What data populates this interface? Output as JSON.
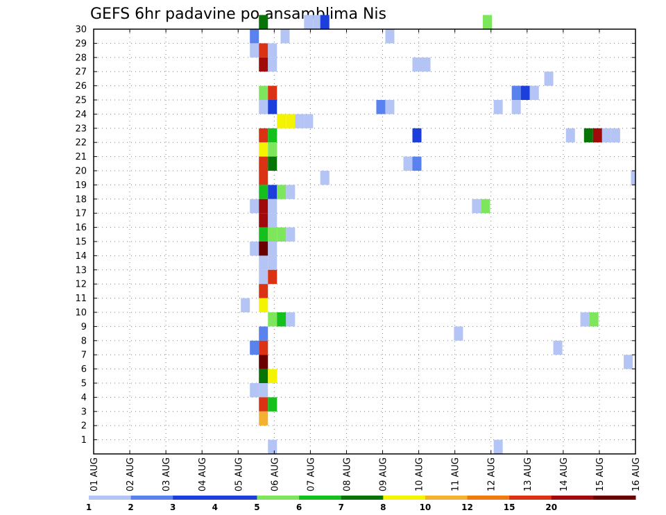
{
  "chart_data": {
    "type": "heatmap",
    "title": "GEFS 6hr padavine po ansamblima Nis",
    "xlabel": "",
    "ylabel": "",
    "x_ticks": [
      "01 AUG",
      "02 AUG",
      "03 AUG",
      "04 AUG",
      "05 AUG",
      "06 AUG",
      "07 AUG",
      "08 AUG",
      "09 AUG",
      "10 AUG",
      "11 AUG",
      "12 AUG",
      "13 AUG",
      "14 AUG",
      "15 AUG",
      "16 AUG"
    ],
    "x_range_days": [
      1,
      16
    ],
    "y_ticks": [
      1,
      2,
      3,
      4,
      5,
      6,
      7,
      8,
      9,
      10,
      11,
      12,
      13,
      14,
      15,
      16,
      17,
      18,
      19,
      20,
      21,
      22,
      23,
      24,
      25,
      26,
      27,
      28,
      29,
      30
    ],
    "y_range": [
      0,
      30
    ],
    "grid": true,
    "colorbar": {
      "labels": [
        "1",
        "2",
        "3",
        "4",
        "5",
        "6",
        "7",
        "8",
        "10",
        "12",
        "15",
        "20"
      ],
      "colors": [
        "#b4c4f4",
        "#5a82ef",
        "#1c3fdc",
        "#1f3fd8",
        "#7ee65c",
        "#16c01c",
        "#067406",
        "#f4f400",
        "#f4b030",
        "#f07a10",
        "#dc3214",
        "#a00a0a",
        "#6a0000"
      ]
    },
    "cells": [
      [
        30,
        5.7,
        "#067406"
      ],
      [
        30,
        6.95,
        "#b4c4f4"
      ],
      [
        30,
        7.2,
        "#b4c4f4"
      ],
      [
        30,
        7.4,
        "#1c3fdc"
      ],
      [
        30,
        11.9,
        "#7ee65c"
      ],
      [
        29,
        5.45,
        "#5a82ef"
      ],
      [
        29,
        6.3,
        "#b4c4f4"
      ],
      [
        29,
        9.2,
        "#b4c4f4"
      ],
      [
        28,
        5.45,
        "#b4c4f4"
      ],
      [
        28,
        5.7,
        "#dc3214"
      ],
      [
        28,
        5.95,
        "#b4c4f4"
      ],
      [
        27,
        5.7,
        "#a00a0a"
      ],
      [
        27,
        5.95,
        "#b4c4f4"
      ],
      [
        27,
        9.95,
        "#b4c4f4"
      ],
      [
        27,
        10.2,
        "#b4c4f4"
      ],
      [
        26,
        13.6,
        "#b4c4f4"
      ],
      [
        25,
        5.7,
        "#7ee65c"
      ],
      [
        25,
        5.95,
        "#dc3214"
      ],
      [
        25,
        12.7,
        "#5a82ef"
      ],
      [
        25,
        12.95,
        "#1c3fdc"
      ],
      [
        25,
        13.2,
        "#b4c4f4"
      ],
      [
        24,
        5.7,
        "#b4c4f4"
      ],
      [
        24,
        5.95,
        "#1c3fdc"
      ],
      [
        24,
        8.95,
        "#5a82ef"
      ],
      [
        24,
        9.2,
        "#b4c4f4"
      ],
      [
        24,
        12.2,
        "#b4c4f4"
      ],
      [
        24,
        12.7,
        "#b4c4f4"
      ],
      [
        23,
        6.2,
        "#f4f400"
      ],
      [
        23,
        6.45,
        "#f4f400"
      ],
      [
        23,
        6.7,
        "#b4c4f4"
      ],
      [
        23,
        6.95,
        "#b4c4f4"
      ],
      [
        22,
        5.7,
        "#dc3214"
      ],
      [
        22,
        5.95,
        "#16c01c"
      ],
      [
        22,
        9.95,
        "#1c3fdc"
      ],
      [
        22,
        14.2,
        "#b4c4f4"
      ],
      [
        22,
        14.7,
        "#067406"
      ],
      [
        22,
        14.95,
        "#a00a0a"
      ],
      [
        22,
        15.2,
        "#b4c4f4"
      ],
      [
        22,
        15.45,
        "#b4c4f4"
      ],
      [
        21,
        5.7,
        "#f4f400"
      ],
      [
        21,
        5.95,
        "#7ee65c"
      ],
      [
        20,
        5.7,
        "#dc3214"
      ],
      [
        20,
        5.95,
        "#067406"
      ],
      [
        20,
        9.7,
        "#b4c4f4"
      ],
      [
        20,
        9.95,
        "#5a82ef"
      ],
      [
        19,
        5.7,
        "#dc3214"
      ],
      [
        19,
        7.4,
        "#b4c4f4"
      ],
      [
        19,
        16.0,
        "#b4c4f4"
      ],
      [
        18,
        5.7,
        "#16c01c"
      ],
      [
        18,
        5.95,
        "#1c3fdc"
      ],
      [
        18,
        6.2,
        "#7ee65c"
      ],
      [
        18,
        6.45,
        "#b4c4f4"
      ],
      [
        17,
        5.45,
        "#b4c4f4"
      ],
      [
        17,
        5.7,
        "#a00a0a"
      ],
      [
        17,
        5.95,
        "#b4c4f4"
      ],
      [
        17,
        11.6,
        "#b4c4f4"
      ],
      [
        17,
        11.85,
        "#7ee65c"
      ],
      [
        16,
        5.7,
        "#a00a0a"
      ],
      [
        16,
        5.95,
        "#b4c4f4"
      ],
      [
        15,
        5.7,
        "#16c01c"
      ],
      [
        15,
        5.95,
        "#7ee65c"
      ],
      [
        15,
        6.2,
        "#7ee65c"
      ],
      [
        15,
        6.45,
        "#b4c4f4"
      ],
      [
        14,
        5.45,
        "#b4c4f4"
      ],
      [
        14,
        5.7,
        "#6a0000"
      ],
      [
        14,
        5.95,
        "#b4c4f4"
      ],
      [
        13,
        5.7,
        "#b4c4f4"
      ],
      [
        13,
        5.95,
        "#b4c4f4"
      ],
      [
        12,
        5.7,
        "#b4c4f4"
      ],
      [
        12,
        5.95,
        "#dc3214"
      ],
      [
        11,
        5.7,
        "#dc3214"
      ],
      [
        10,
        5.2,
        "#b4c4f4"
      ],
      [
        10,
        5.7,
        "#f4f400"
      ],
      [
        9,
        5.95,
        "#7ee65c"
      ],
      [
        9,
        6.2,
        "#16c01c"
      ],
      [
        9,
        6.45,
        "#b4c4f4"
      ],
      [
        9,
        14.6,
        "#b4c4f4"
      ],
      [
        9,
        14.85,
        "#7ee65c"
      ],
      [
        8,
        5.7,
        "#5a82ef"
      ],
      [
        8,
        11.1,
        "#b4c4f4"
      ],
      [
        7,
        5.45,
        "#5a82ef"
      ],
      [
        7,
        5.7,
        "#dc3214"
      ],
      [
        7,
        13.85,
        "#b4c4f4"
      ],
      [
        6,
        5.7,
        "#6a0000"
      ],
      [
        6,
        15.8,
        "#b4c4f4"
      ],
      [
        5,
        5.7,
        "#067406"
      ],
      [
        5,
        5.95,
        "#f4f400"
      ],
      [
        4,
        5.45,
        "#b4c4f4"
      ],
      [
        4,
        5.7,
        "#b4c4f4"
      ],
      [
        3,
        5.7,
        "#dc3214"
      ],
      [
        3,
        5.95,
        "#16c01c"
      ],
      [
        2,
        5.7,
        "#f4b030"
      ],
      [
        0,
        5.95,
        "#b4c4f4"
      ],
      [
        0,
        12.2,
        "#b4c4f4"
      ]
    ]
  }
}
